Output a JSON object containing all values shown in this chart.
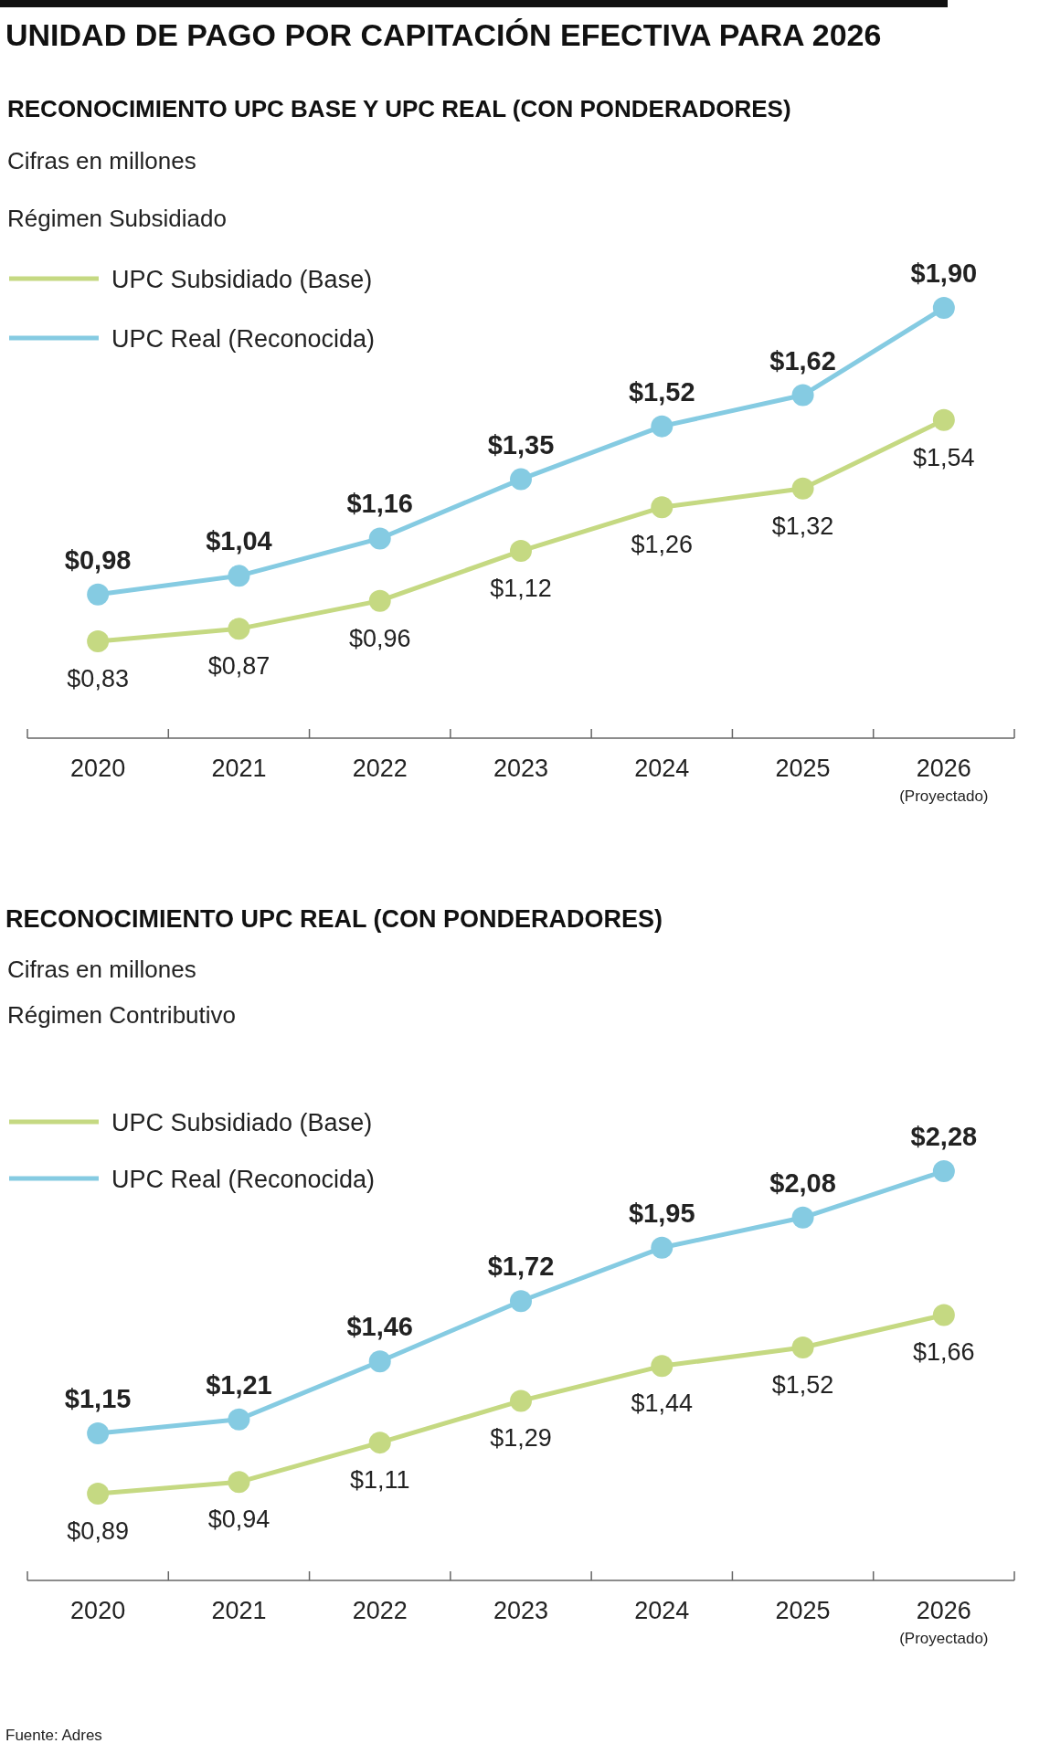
{
  "chart_data": [
    {
      "type": "line",
      "title": "UNIDAD DE PAGO POR CAPITACIÓN EFECTIVA PARA 2026",
      "subtitle": "RECONOCIMIENTO UPC BASE Y UPC REAL (CON PONDERADORES)",
      "annotations": [
        "Cifras en millones",
        "Régimen Subsidiado"
      ],
      "categories": [
        "2020",
        "2021",
        "2022",
        "2023",
        "2024",
        "2025",
        "2026 (Proyectado)"
      ],
      "series": [
        {
          "name": "UPC Subsidiado (Base)",
          "color": "#c5d982",
          "values": [
            0.83,
            0.87,
            0.96,
            1.12,
            1.26,
            1.32,
            1.54
          ],
          "value_labels": [
            "$0,83",
            "$0,87",
            "$0,96",
            "$1,12",
            "$1,26",
            "$1,32",
            "$1,54"
          ]
        },
        {
          "name": "UPC Real (Reconocida)",
          "color": "#85cbe2",
          "values": [
            0.98,
            1.04,
            1.16,
            1.35,
            1.52,
            1.62,
            1.9
          ],
          "value_labels": [
            "$0,98",
            "$1,04",
            "$1,16",
            "$1,35",
            "$1,52",
            "$1,62",
            "$1,90"
          ]
        }
      ],
      "legend": "top left",
      "marker": "circle",
      "tick_labels": "x"
    },
    {
      "type": "line",
      "title": "RECONOCIMIENTO UPC REAL (CON PONDERADORES)",
      "annotations": [
        "Cifras en millones",
        "Régimen Contributivo",
        "Fuente: Adres"
      ],
      "categories": [
        "2020",
        "2021",
        "2022",
        "2023",
        "2024",
        "2025",
        "2026 (Proyectado)"
      ],
      "series": [
        {
          "name": "UPC Subsidiado (Base)",
          "color": "#c5d982",
          "values": [
            0.89,
            0.94,
            1.11,
            1.29,
            1.44,
            1.52,
            1.66
          ],
          "value_labels": [
            "$0,89",
            "$0,94",
            "$1,11",
            "$1,29",
            "$1,44",
            "$1,52",
            "$1,66"
          ]
        },
        {
          "name": "UPC Real (Reconocida)",
          "color": "#85cbe2",
          "values": [
            1.15,
            1.21,
            1.46,
            1.72,
            1.95,
            2.08,
            2.28
          ],
          "value_labels": [
            "$1,15",
            "$1,21",
            "$1,46",
            "$1,72",
            "$1,95",
            "$2,08",
            "$2,28"
          ]
        }
      ],
      "legend": "top left",
      "marker": "circle",
      "tick_labels": "x"
    }
  ]
}
